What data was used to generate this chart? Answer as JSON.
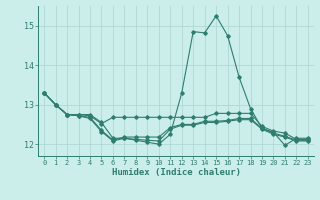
{
  "xlabel": "Humidex (Indice chaleur)",
  "bg_color": "#cceeeb",
  "line_color": "#2e7d6e",
  "grid_color": "#aad4ce",
  "xlim": [
    -0.5,
    23.5
  ],
  "ylim": [
    11.7,
    15.5
  ],
  "yticks": [
    12,
    13,
    14,
    15
  ],
  "xticks": [
    0,
    1,
    2,
    3,
    4,
    5,
    6,
    7,
    8,
    9,
    10,
    11,
    12,
    13,
    14,
    15,
    16,
    17,
    18,
    19,
    20,
    21,
    22,
    23
  ],
  "series": [
    [
      13.3,
      13.0,
      12.75,
      12.75,
      12.75,
      12.55,
      12.15,
      12.15,
      12.1,
      12.05,
      12.0,
      12.25,
      13.3,
      14.85,
      14.82,
      15.25,
      14.75,
      13.7,
      12.9,
      12.4,
      12.3,
      11.97,
      12.15,
      12.15
    ],
    [
      13.3,
      13.0,
      12.75,
      12.75,
      12.72,
      12.52,
      12.68,
      12.68,
      12.68,
      12.68,
      12.68,
      12.68,
      12.68,
      12.68,
      12.68,
      12.78,
      12.78,
      12.78,
      12.78,
      12.45,
      12.33,
      12.28,
      12.12,
      12.12
    ],
    [
      13.3,
      13.0,
      12.75,
      12.72,
      12.68,
      12.35,
      12.1,
      12.18,
      12.18,
      12.18,
      12.18,
      12.42,
      12.5,
      12.5,
      12.58,
      12.58,
      12.6,
      12.65,
      12.65,
      12.4,
      12.28,
      12.2,
      12.1,
      12.1
    ],
    [
      13.3,
      13.0,
      12.75,
      12.72,
      12.65,
      12.32,
      12.08,
      12.15,
      12.12,
      12.1,
      12.08,
      12.38,
      12.48,
      12.48,
      12.55,
      12.55,
      12.58,
      12.62,
      12.62,
      12.38,
      12.25,
      12.18,
      12.08,
      12.08
    ]
  ]
}
